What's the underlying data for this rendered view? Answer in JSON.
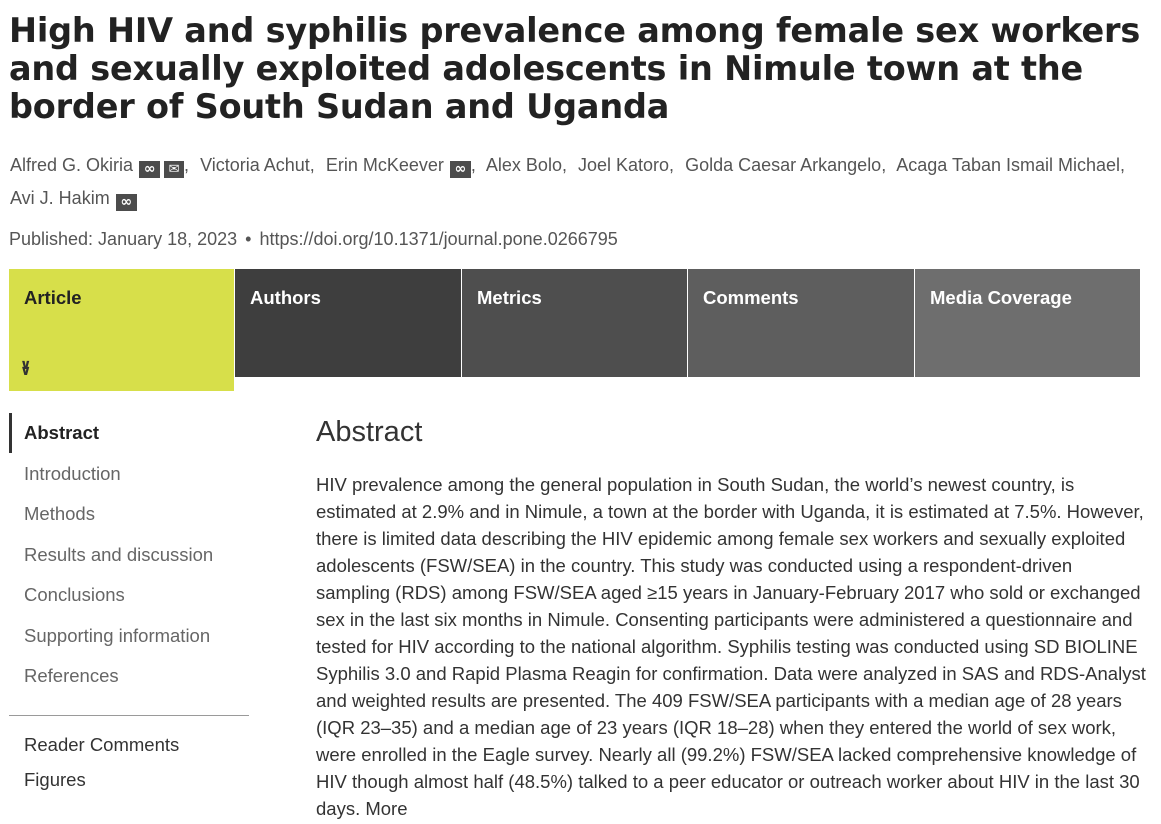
{
  "article": {
    "title": "High HIV and syphilis prevalence among female sex workers and sexually exploited adolescents in Nimule town at the border of South Sudan and Uganda",
    "authors": [
      {
        "name": "Alfred G. Okiria",
        "orcid": true,
        "email": true
      },
      {
        "name": "Victoria Achut",
        "orcid": false,
        "email": false
      },
      {
        "name": "Erin McKeever",
        "orcid": true,
        "email": false
      },
      {
        "name": "Alex Bolo",
        "orcid": false,
        "email": false
      },
      {
        "name": "Joel Katoro",
        "orcid": false,
        "email": false
      },
      {
        "name": "Golda Caesar Arkangelo",
        "orcid": false,
        "email": false
      },
      {
        "name": "Acaga Taban Ismail Michael",
        "orcid": false,
        "email": false
      },
      {
        "name": "Avi J. Hakim",
        "orcid": true,
        "email": false
      }
    ],
    "author_separator": ",",
    "published_label": "Published: January 18, 2023",
    "bullet": "•",
    "doi": "https://doi.org/10.1371/journal.pone.0266795"
  },
  "tabs": [
    {
      "label": "Article",
      "active": true,
      "color": "#d7df4a"
    },
    {
      "label": "Authors",
      "active": false,
      "color": "#3e3e3e"
    },
    {
      "label": "Metrics",
      "active": false,
      "color": "#4e4e4e"
    },
    {
      "label": "Comments",
      "active": false,
      "color": "#5e5e5e"
    },
    {
      "label": "Media Coverage",
      "active": false,
      "color": "#6e6e6e"
    }
  ],
  "tab_expand_icon": "double-chevron-down-icon",
  "sidebar": {
    "items": [
      {
        "label": "Abstract",
        "active": true
      },
      {
        "label": "Introduction",
        "active": false
      },
      {
        "label": "Methods",
        "active": false
      },
      {
        "label": "Results and discussion",
        "active": false
      },
      {
        "label": "Conclusions",
        "active": false
      },
      {
        "label": "Supporting information",
        "active": false
      },
      {
        "label": "References",
        "active": false
      }
    ],
    "extra_items": [
      {
        "label": "Reader Comments"
      },
      {
        "label": "Figures"
      }
    ]
  },
  "abstract": {
    "heading": "Abstract",
    "text": "HIV prevalence among the general population in South Sudan, the world’s newest country, is estimated at 2.9% and in Nimule, a town at the border with Uganda, it is estimated at 7.5%. However, there is limited data describing the HIV epidemic among female sex workers and sexually exploited adolescents (FSW/SEA) in the country. This study was conducted using a respondent-driven sampling (RDS) among FSW/SEA aged ≥15 years in January-February 2017 who sold or exchanged sex in the last six months in Nimule. Consenting participants were administered a questionnaire and tested for HIV according to the national algorithm. Syphilis testing was conducted using SD BIOLINE Syphilis 3.0 and Rapid Plasma Reagin for confirmation. Data were analyzed in SAS and RDS-Analyst and weighted results are presented. The 409 FSW/SEA participants with a median age of 28 years (IQR 23–35) and a median age of 23 years (IQR 18–28) when they entered the world of sex work, were enrolled in the Eagle survey. Nearly all (99.2%) FSW/SEA lacked comprehensive knowledge of HIV though almost half (48.5%) talked to a peer educator or outreach worker about HIV in the last 30 days. More"
  }
}
